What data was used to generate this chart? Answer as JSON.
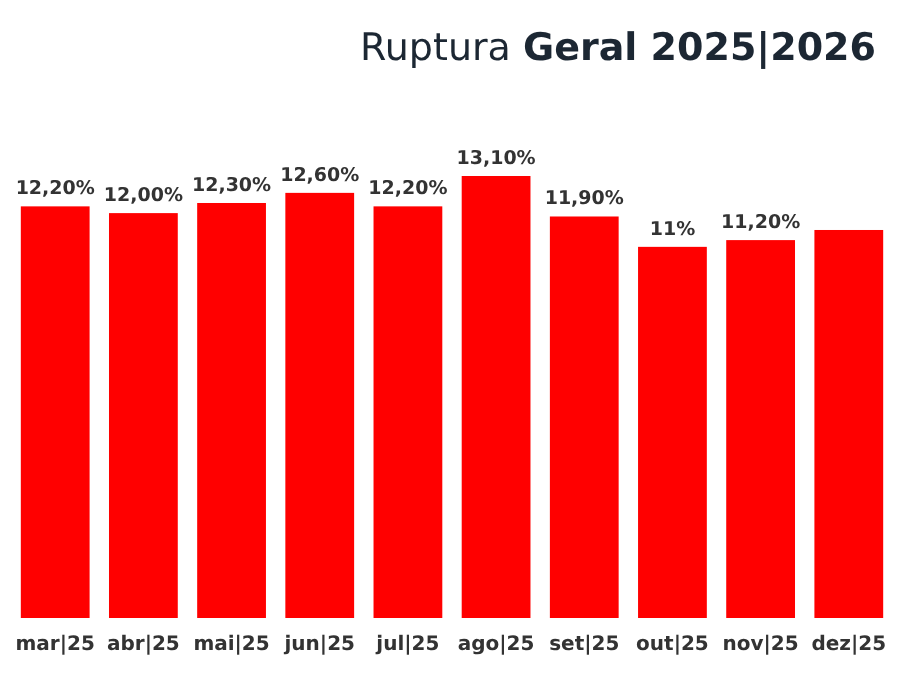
{
  "chart_data": {
    "type": "bar",
    "title": "Ruptura Geral 2025|2026",
    "categories": [
      "mar|25",
      "abr|25",
      "mai|25",
      "jun|25",
      "jul|25",
      "ago|25",
      "set|25",
      "out|25",
      "nov|25",
      "dez|25"
    ],
    "values": [
      12.2,
      12.0,
      12.3,
      12.6,
      12.2,
      13.1,
      11.9,
      11.0,
      11.2,
      11.5
    ],
    "value_labels": [
      "12,20%",
      "12,00%",
      "12,30%",
      "12,60%",
      "12,20%",
      "13,10%",
      "11,90%",
      "11%",
      "11,20%",
      null
    ],
    "color": "#ff0000",
    "tick_labels": "x"
  }
}
